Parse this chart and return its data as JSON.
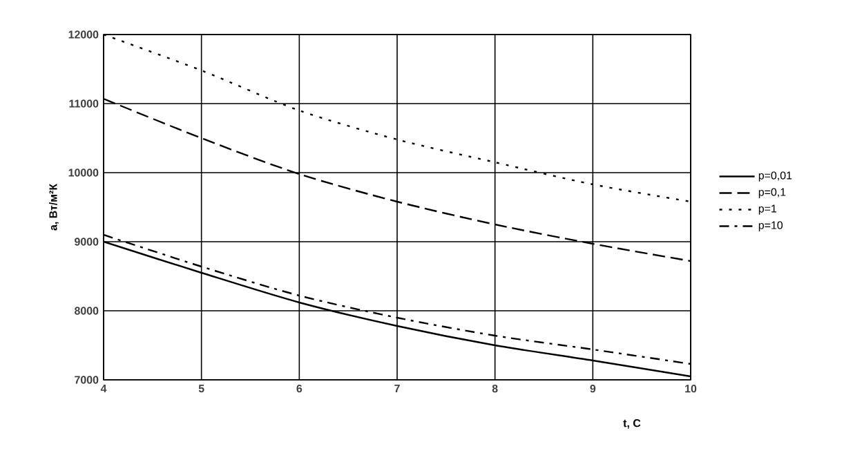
{
  "chart_data": {
    "type": "line",
    "xlabel": "t, C",
    "ylabel": "a, Вт/м²К",
    "x": [
      4,
      5,
      6,
      7,
      8,
      9,
      10
    ],
    "series": [
      {
        "name": "p=0,01",
        "color": "#000000",
        "line_style": "solid",
        "values": [
          9000,
          8550,
          8120,
          7780,
          7500,
          7280,
          7050
        ]
      },
      {
        "name": "p=0,1",
        "color": "#000000",
        "line_style": "dashed",
        "values": [
          11070,
          10500,
          9980,
          9580,
          9250,
          8970,
          8720
        ]
      },
      {
        "name": "p=1",
        "color": "#000000",
        "line_style": "dotted",
        "values": [
          12000,
          11480,
          10900,
          10480,
          10150,
          9830,
          9580
        ]
      },
      {
        "name": "p=10",
        "color": "#000000",
        "line_style": "dashdot",
        "values": [
          9100,
          8640,
          8220,
          7900,
          7640,
          7440,
          7230
        ]
      }
    ],
    "xlim": [
      4,
      10
    ],
    "xticks": [
      4,
      5,
      6,
      7,
      8,
      9,
      10
    ],
    "ylim": [
      7000,
      12000
    ],
    "yticks": [
      7000,
      8000,
      9000,
      10000,
      11000,
      12000
    ],
    "grid": true,
    "legend": "right"
  }
}
